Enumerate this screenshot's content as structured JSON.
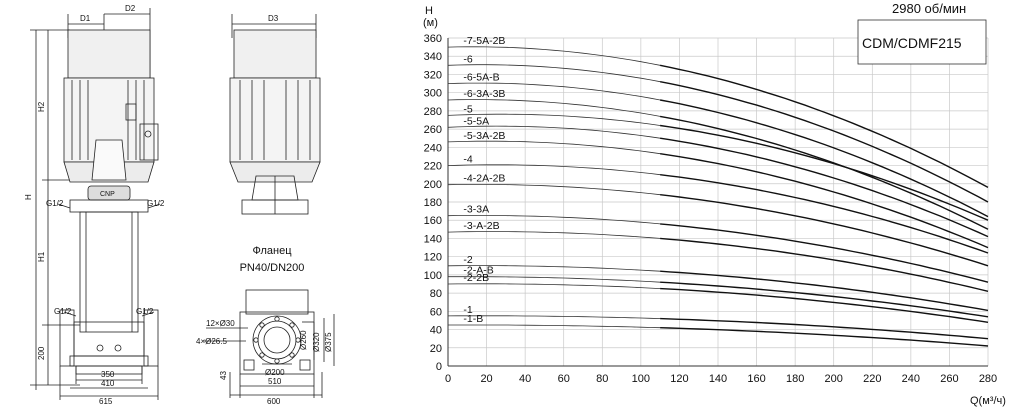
{
  "speed_label": "2980 об/мин",
  "model_label": "CDM/CDMF215",
  "flange": {
    "title": "Фланец",
    "spec": "PN40/DN200"
  },
  "dimensions": {
    "D1": "D1",
    "D2": "D2",
    "D3": "D3",
    "H": "H",
    "H1": "H1",
    "H2": "H2",
    "G_left_top": "G1/2",
    "G_right_top": "G1/2",
    "G_left_bottom": "G1/2",
    "G_right_bottom": "G1/2",
    "h200": "200",
    "w350": "350",
    "w410": "410",
    "w615": "615",
    "bolts": "12×Ø30",
    "holes": "4×Ø26.5",
    "d260": "Ø260",
    "d320": "Ø320",
    "d375": "Ø375",
    "d200": "Ø200",
    "h43": "43",
    "w510": "510",
    "w600": "600"
  },
  "chart_data": {
    "type": "line",
    "title": "",
    "xlabel": "Q(м³/ч)",
    "ylabel": "H",
    "ylabel_unit": "(м)",
    "xlim": [
      0,
      280
    ],
    "ylim": [
      0,
      360
    ],
    "x_ticks": [
      0,
      20,
      40,
      60,
      80,
      100,
      120,
      140,
      160,
      180,
      200,
      220,
      240,
      260,
      280
    ],
    "y_ticks": [
      0,
      20,
      40,
      60,
      80,
      100,
      120,
      140,
      160,
      180,
      200,
      220,
      240,
      260,
      280,
      300,
      320,
      340,
      360
    ],
    "grid": true,
    "series": [
      {
        "name": "-7-5A-2B",
        "h0": 350,
        "h110": 330,
        "h280": 196
      },
      {
        "name": "-6",
        "h0": 330,
        "h110": 312,
        "h280": 180
      },
      {
        "name": "-6-5A-B",
        "h0": 310,
        "h110": 292,
        "h280": 164
      },
      {
        "name": "-6-3A-3B",
        "h0": 292,
        "h110": 274,
        "h280": 150
      },
      {
        "name": "-5",
        "h0": 275,
        "h110": 264,
        "h280": 160
      },
      {
        "name": "-5-5A",
        "h0": 262,
        "h110": 250,
        "h280": 142
      },
      {
        "name": "-5-3A-2B",
        "h0": 246,
        "h110": 233,
        "h280": 130
      },
      {
        "name": "-4",
        "h0": 220,
        "h110": 210,
        "h280": 124
      },
      {
        "name": "-4-2A-2B",
        "h0": 199,
        "h110": 188,
        "h280": 110
      },
      {
        "name": "-3-3A",
        "h0": 165,
        "h110": 156,
        "h280": 92
      },
      {
        "name": "-3-A-2B",
        "h0": 147,
        "h110": 140,
        "h280": 82
      },
      {
        "name": "-2",
        "h0": 110,
        "h110": 104,
        "h280": 61
      },
      {
        "name": "-2-A-B",
        "h0": 98,
        "h110": 92,
        "h280": 54
      },
      {
        "name": "-2-2B",
        "h0": 90,
        "h110": 85,
        "h280": 48
      },
      {
        "name": "-1",
        "h0": 55,
        "h110": 52,
        "h280": 30
      },
      {
        "name": "-1-B",
        "h0": 45,
        "h110": 42,
        "h280": 22
      }
    ]
  }
}
